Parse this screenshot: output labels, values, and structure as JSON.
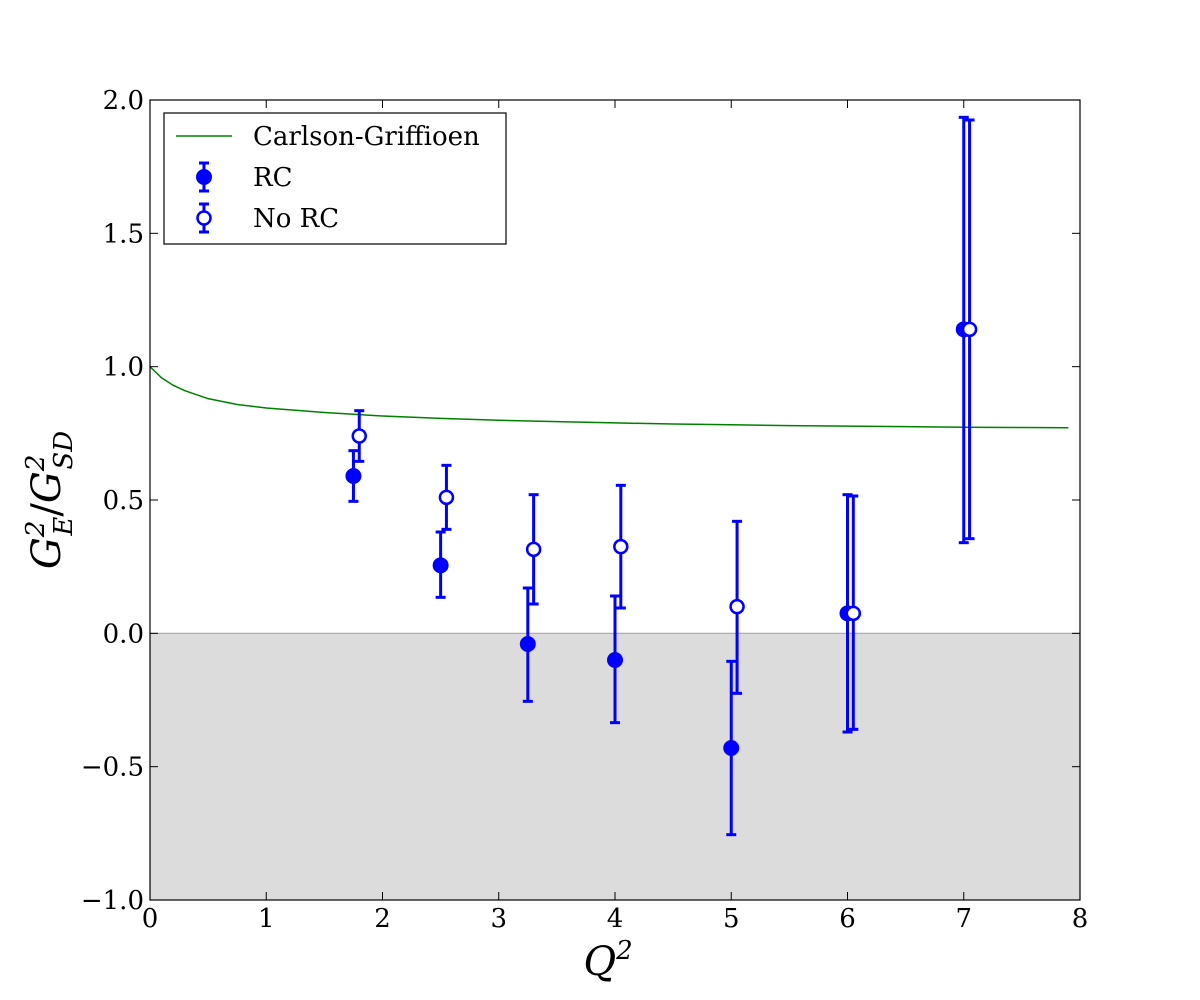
{
  "chart_data": {
    "type": "scatter",
    "xlabel": {
      "base": "Q",
      "sup": "2"
    },
    "ylabel": {
      "num_base": "G",
      "num_sup": "2",
      "num_sub": "E",
      "sep": "/",
      "den_base": "G",
      "den_sup": "2",
      "den_sub": "SD"
    },
    "xlim": [
      0,
      8
    ],
    "ylim": [
      -1.0,
      2.0
    ],
    "xticks": [
      0,
      1,
      2,
      3,
      4,
      5,
      6,
      7,
      8
    ],
    "yticks": [
      -1.0,
      -0.5,
      0.0,
      0.5,
      1.0,
      1.5,
      2.0
    ],
    "ytick_labels": [
      "−1.0",
      "−0.5",
      "0.0",
      "0.5",
      "1.0",
      "1.5",
      "2.0"
    ],
    "grid": false,
    "legend_position": "top-left",
    "shaded_region": {
      "y_from": -1.0,
      "y_to": 0.0,
      "color": "#dcdcdc"
    },
    "colors": {
      "data": "#0000ff",
      "curve": "#008000",
      "zero_line": "#a8a8a8"
    },
    "series": [
      {
        "name": "Carlson-Griffioen",
        "kind": "line",
        "x": [
          0.0,
          0.1,
          0.2,
          0.3,
          0.5,
          0.75,
          1.0,
          1.5,
          2.0,
          2.5,
          3.0,
          3.5,
          4.0,
          4.5,
          5.0,
          5.5,
          6.0,
          6.5,
          7.0,
          7.5,
          7.9
        ],
        "y": [
          1.0,
          0.958,
          0.93,
          0.91,
          0.88,
          0.858,
          0.845,
          0.828,
          0.815,
          0.806,
          0.799,
          0.794,
          0.789,
          0.785,
          0.782,
          0.779,
          0.777,
          0.775,
          0.773,
          0.772,
          0.771
        ]
      },
      {
        "name": "RC",
        "kind": "errorbar",
        "marker": "filled",
        "x": [
          1.75,
          2.5,
          3.25,
          4.0,
          5.0,
          6.0,
          7.0
        ],
        "y": [
          0.59,
          0.255,
          -0.04,
          -0.1,
          -0.43,
          0.075,
          1.14
        ],
        "yerr_low": [
          0.095,
          0.12,
          0.215,
          0.235,
          0.325,
          0.445,
          0.8
        ],
        "yerr_high": [
          0.095,
          0.125,
          0.21,
          0.24,
          0.325,
          0.445,
          0.795
        ]
      },
      {
        "name": "No RC",
        "kind": "errorbar",
        "marker": "open",
        "x": [
          1.8,
          2.55,
          3.3,
          4.05,
          5.05,
          6.05,
          7.05
        ],
        "y": [
          0.74,
          0.51,
          0.315,
          0.325,
          0.1,
          0.075,
          1.14
        ],
        "yerr_low": [
          0.095,
          0.12,
          0.205,
          0.23,
          0.325,
          0.435,
          0.785
        ],
        "yerr_high": [
          0.095,
          0.12,
          0.205,
          0.23,
          0.32,
          0.44,
          0.785
        ]
      }
    ]
  }
}
